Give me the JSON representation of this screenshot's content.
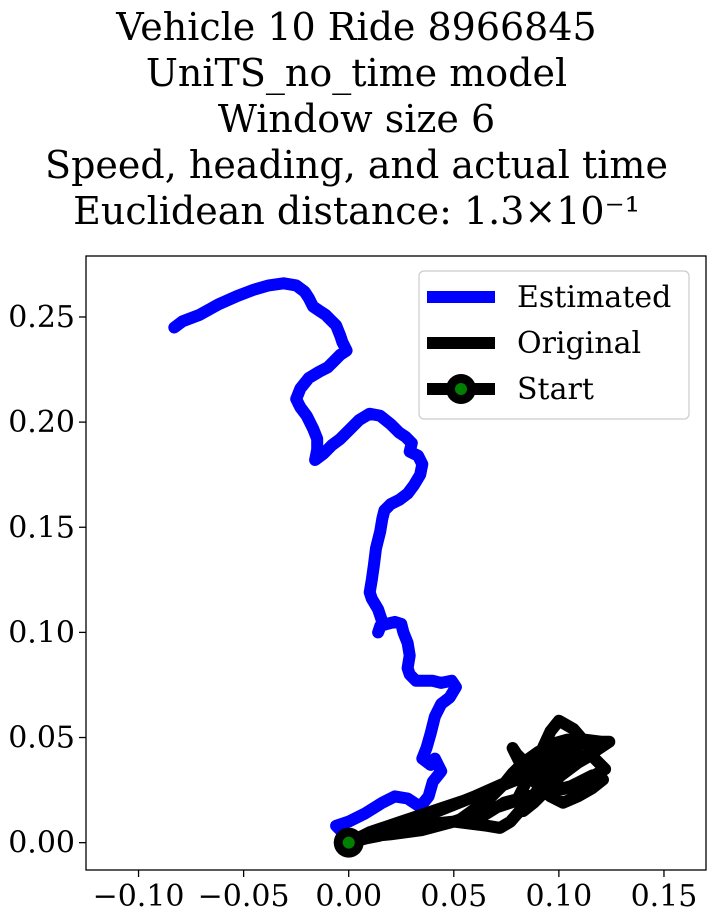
{
  "chart_data": {
    "type": "line",
    "title_lines": [
      "Vehicle 10 Ride 8966845",
      "UniTS_no_time model",
      "Window size 6",
      "Speed, heading, and actual time",
      "Euclidean distance: 1.3×10⁻¹"
    ],
    "xlabel": "",
    "ylabel": "",
    "xlim": [
      -0.125,
      0.17
    ],
    "ylim": [
      -0.013,
      0.279
    ],
    "grid": false,
    "legend_position": "upper-right",
    "x_ticks": [
      -0.1,
      -0.05,
      0.0,
      0.05,
      0.1,
      0.15
    ],
    "x_tick_labels": [
      "−0.10",
      "−0.05",
      "0.00",
      "0.05",
      "0.10",
      "0.15"
    ],
    "y_ticks": [
      0.0,
      0.05,
      0.1,
      0.15,
      0.2,
      0.25
    ],
    "y_tick_labels": [
      "0.00",
      "0.05",
      "0.10",
      "0.15",
      "0.20",
      "0.25"
    ],
    "series": [
      {
        "name": "Estimated",
        "color": "#0000ff",
        "points": [
          [
            0.0,
            0.0
          ],
          [
            -0.002,
            0.004
          ],
          [
            -0.006,
            0.008
          ],
          [
            0.0,
            0.01
          ],
          [
            0.008,
            0.014
          ],
          [
            0.016,
            0.019
          ],
          [
            0.022,
            0.022
          ],
          [
            0.028,
            0.021
          ],
          [
            0.034,
            0.017
          ],
          [
            0.038,
            0.022
          ],
          [
            0.04,
            0.029
          ],
          [
            0.044,
            0.034
          ],
          [
            0.041,
            0.04
          ],
          [
            0.039,
            0.037
          ],
          [
            0.035,
            0.04
          ],
          [
            0.037,
            0.045
          ],
          [
            0.039,
            0.052
          ],
          [
            0.041,
            0.06
          ],
          [
            0.044,
            0.066
          ],
          [
            0.048,
            0.069
          ],
          [
            0.051,
            0.074
          ],
          [
            0.049,
            0.077
          ],
          [
            0.044,
            0.076
          ],
          [
            0.04,
            0.077
          ],
          [
            0.036,
            0.077
          ],
          [
            0.032,
            0.077
          ],
          [
            0.029,
            0.08
          ],
          [
            0.028,
            0.083
          ],
          [
            0.029,
            0.089
          ],
          [
            0.028,
            0.095
          ],
          [
            0.026,
            0.1
          ],
          [
            0.025,
            0.104
          ],
          [
            0.022,
            0.105
          ],
          [
            0.018,
            0.104
          ],
          [
            0.015,
            0.103
          ],
          [
            0.014,
            0.1
          ],
          [
            0.016,
            0.105
          ],
          [
            0.014,
            0.111
          ],
          [
            0.011,
            0.116
          ],
          [
            0.01,
            0.119
          ],
          [
            0.011,
            0.125
          ],
          [
            0.012,
            0.132
          ],
          [
            0.013,
            0.14
          ],
          [
            0.015,
            0.148
          ],
          [
            0.016,
            0.154
          ],
          [
            0.017,
            0.158
          ],
          [
            0.02,
            0.161
          ],
          [
            0.024,
            0.163
          ],
          [
            0.028,
            0.166
          ],
          [
            0.031,
            0.17
          ],
          [
            0.034,
            0.175
          ],
          [
            0.035,
            0.18
          ],
          [
            0.033,
            0.184
          ],
          [
            0.029,
            0.186
          ],
          [
            0.03,
            0.19
          ],
          [
            0.027,
            0.193
          ],
          [
            0.024,
            0.195
          ],
          [
            0.02,
            0.199
          ],
          [
            0.015,
            0.203
          ],
          [
            0.01,
            0.204
          ],
          [
            0.005,
            0.201
          ],
          [
            0.0,
            0.196
          ],
          [
            -0.004,
            0.192
          ],
          [
            -0.008,
            0.189
          ],
          [
            -0.012,
            0.185
          ],
          [
            -0.016,
            0.182
          ],
          [
            -0.015,
            0.187
          ],
          [
            -0.015,
            0.192
          ],
          [
            -0.017,
            0.197
          ],
          [
            -0.02,
            0.203
          ],
          [
            -0.023,
            0.207
          ],
          [
            -0.025,
            0.211
          ],
          [
            -0.023,
            0.216
          ],
          [
            -0.019,
            0.221
          ],
          [
            -0.014,
            0.224
          ],
          [
            -0.01,
            0.226
          ],
          [
            -0.007,
            0.229
          ],
          [
            -0.004,
            0.232
          ],
          [
            -0.001,
            0.234
          ],
          [
            -0.003,
            0.238
          ],
          [
            -0.004,
            0.241
          ],
          [
            -0.006,
            0.246
          ],
          [
            -0.009,
            0.249
          ],
          [
            -0.011,
            0.251
          ],
          [
            -0.014,
            0.253
          ],
          [
            -0.017,
            0.255
          ],
          [
            -0.019,
            0.259
          ],
          [
            -0.021,
            0.262
          ],
          [
            -0.025,
            0.265
          ],
          [
            -0.031,
            0.266
          ],
          [
            -0.038,
            0.265
          ],
          [
            -0.045,
            0.263
          ],
          [
            -0.053,
            0.26
          ],
          [
            -0.062,
            0.256
          ],
          [
            -0.071,
            0.251
          ],
          [
            -0.079,
            0.248
          ],
          [
            -0.083,
            0.245
          ]
        ]
      },
      {
        "name": "Original",
        "color": "#000000",
        "points": [
          [
            0.0,
            0.0
          ],
          [
            0.01,
            0.005
          ],
          [
            0.025,
            0.01
          ],
          [
            0.04,
            0.015
          ],
          [
            0.055,
            0.02
          ],
          [
            0.07,
            0.026
          ],
          [
            0.085,
            0.032
          ],
          [
            0.1,
            0.038
          ],
          [
            0.115,
            0.042
          ],
          [
            0.122,
            0.035
          ],
          [
            0.11,
            0.028
          ],
          [
            0.095,
            0.024
          ],
          [
            0.08,
            0.02
          ],
          [
            0.065,
            0.015
          ],
          [
            0.05,
            0.01
          ],
          [
            0.035,
            0.006
          ],
          [
            0.02,
            0.004
          ],
          [
            0.01,
            0.003
          ],
          [
            0.02,
            0.008
          ],
          [
            0.04,
            0.014
          ],
          [
            0.06,
            0.022
          ],
          [
            0.078,
            0.03
          ],
          [
            0.09,
            0.04
          ],
          [
            0.096,
            0.053
          ],
          [
            0.1,
            0.058
          ],
          [
            0.107,
            0.054
          ],
          [
            0.113,
            0.047
          ],
          [
            0.116,
            0.042
          ],
          [
            0.109,
            0.038
          ],
          [
            0.101,
            0.032
          ],
          [
            0.094,
            0.025
          ],
          [
            0.088,
            0.019
          ],
          [
            0.083,
            0.015
          ],
          [
            0.081,
            0.022
          ],
          [
            0.085,
            0.03
          ],
          [
            0.09,
            0.036
          ],
          [
            0.097,
            0.042
          ],
          [
            0.104,
            0.046
          ],
          [
            0.11,
            0.047
          ],
          [
            0.104,
            0.04
          ],
          [
            0.099,
            0.033
          ],
          [
            0.093,
            0.029
          ],
          [
            0.088,
            0.031
          ],
          [
            0.085,
            0.037
          ],
          [
            0.08,
            0.042
          ],
          [
            0.078,
            0.045
          ],
          [
            0.081,
            0.039
          ],
          [
            0.086,
            0.032
          ],
          [
            0.091,
            0.026
          ],
          [
            0.096,
            0.022
          ],
          [
            0.102,
            0.019
          ],
          [
            0.109,
            0.022
          ],
          [
            0.116,
            0.026
          ],
          [
            0.121,
            0.03
          ],
          [
            0.116,
            0.032
          ],
          [
            0.11,
            0.029
          ],
          [
            0.104,
            0.026
          ],
          [
            0.096,
            0.024
          ],
          [
            0.085,
            0.022
          ],
          [
            0.074,
            0.019
          ],
          [
            0.066,
            0.014
          ],
          [
            0.059,
            0.01
          ],
          [
            0.053,
            0.011
          ],
          [
            0.06,
            0.016
          ],
          [
            0.068,
            0.022
          ],
          [
            0.074,
            0.028
          ],
          [
            0.078,
            0.033
          ],
          [
            0.083,
            0.038
          ],
          [
            0.09,
            0.043
          ],
          [
            0.097,
            0.047
          ],
          [
            0.104,
            0.049
          ],
          [
            0.112,
            0.049
          ],
          [
            0.12,
            0.048
          ],
          [
            0.124,
            0.048
          ],
          [
            0.118,
            0.044
          ],
          [
            0.111,
            0.04
          ],
          [
            0.104,
            0.036
          ],
          [
            0.097,
            0.031
          ],
          [
            0.09,
            0.025
          ],
          [
            0.083,
            0.017
          ],
          [
            0.077,
            0.01
          ],
          [
            0.072,
            0.007
          ],
          [
            0.066,
            0.008
          ],
          [
            0.058,
            0.009
          ],
          [
            0.05,
            0.01
          ],
          [
            0.04,
            0.009
          ],
          [
            0.03,
            0.007
          ],
          [
            0.018,
            0.004
          ],
          [
            0.008,
            0.002
          ],
          [
            0.0,
            0.0
          ]
        ]
      }
    ],
    "start_point": {
      "name": "Start",
      "x": 0.0,
      "y": 0.0,
      "marker_color": "#008000",
      "edge_color": "#000000"
    },
    "legend": [
      {
        "label": "Estimated",
        "color": "#0000ff",
        "marker": "none"
      },
      {
        "label": "Original",
        "color": "#000000",
        "marker": "none"
      },
      {
        "label": "Start",
        "color": "#000000",
        "marker": "circle",
        "marker_fill": "#008000"
      }
    ]
  }
}
